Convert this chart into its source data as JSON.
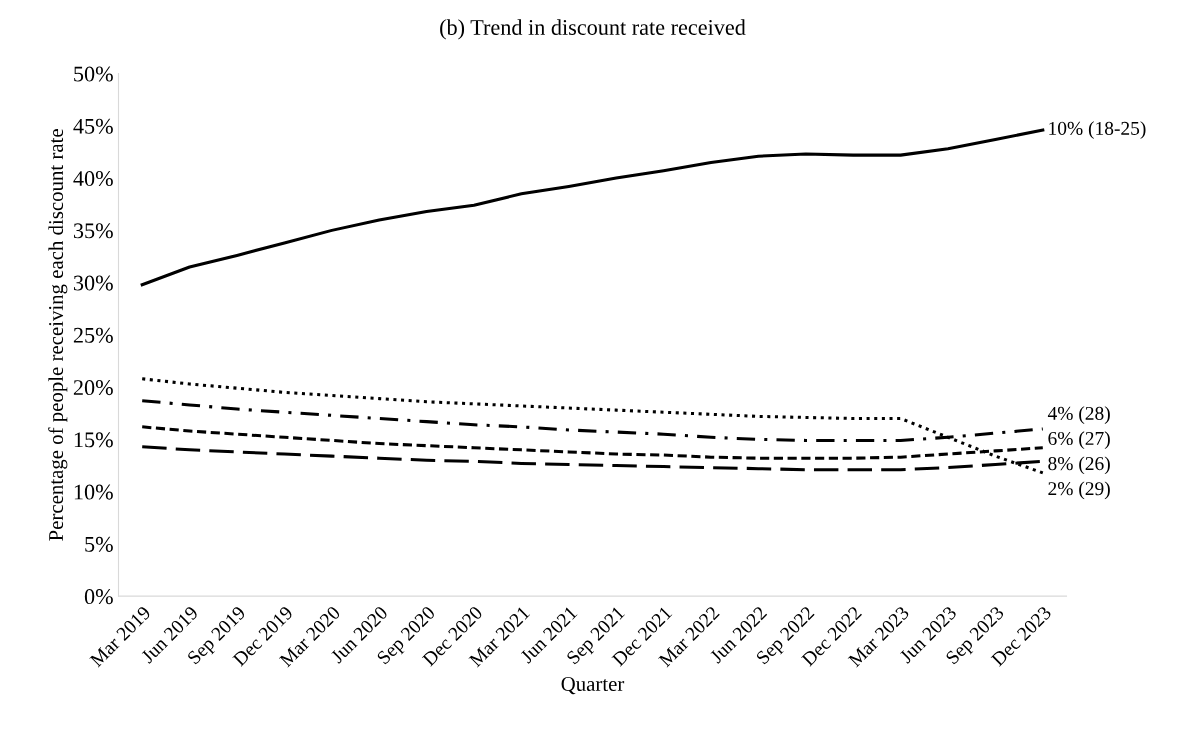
{
  "chart_data": {
    "type": "line",
    "title": "(b) Trend in discount rate received",
    "xlabel": "Quarter",
    "ylabel": "Percentage of people receiving each discount rate",
    "categories": [
      "Mar 2019",
      "Jun 2019",
      "Sep 2019",
      "Dec 2019",
      "Mar 2020",
      "Jun 2020",
      "Sep 2020",
      "Dec 2020",
      "Mar 2021",
      "Jun 2021",
      "Sep 2021",
      "Dec 2021",
      "Mar 2022",
      "Jun 2022",
      "Sep 2022",
      "Dec 2022",
      "Mar 2023",
      "Jun 2023",
      "Sep 2023",
      "Dec 2023"
    ],
    "series": [
      {
        "name": "10% (18-25)",
        "color": "#000000",
        "line_style": "solid",
        "values": [
          29.8,
          31.5,
          32.6,
          33.8,
          35.0,
          36.0,
          36.8,
          37.4,
          38.5,
          39.2,
          40.0,
          40.7,
          41.5,
          42.1,
          42.3,
          42.2,
          42.2,
          42.8,
          43.7,
          44.6
        ]
      },
      {
        "name": "4% (28)",
        "color": "#000000",
        "line_style": "dashdot",
        "values": [
          18.7,
          18.3,
          17.9,
          17.6,
          17.3,
          17.0,
          16.7,
          16.4,
          16.2,
          15.9,
          15.7,
          15.5,
          15.2,
          15.0,
          14.9,
          14.9,
          14.9,
          15.2,
          15.6,
          16.0
        ]
      },
      {
        "name": "6% (27)",
        "color": "#000000",
        "line_style": "dashed",
        "values": [
          16.2,
          15.8,
          15.5,
          15.2,
          14.9,
          14.6,
          14.4,
          14.2,
          14.0,
          13.8,
          13.6,
          13.5,
          13.3,
          13.2,
          13.2,
          13.2,
          13.3,
          13.6,
          13.9,
          14.2
        ]
      },
      {
        "name": "8% (26)",
        "color": "#000000",
        "line_style": "longdash",
        "values": [
          14.3,
          14.0,
          13.8,
          13.6,
          13.4,
          13.2,
          13.0,
          12.9,
          12.7,
          12.6,
          12.5,
          12.4,
          12.3,
          12.2,
          12.1,
          12.1,
          12.1,
          12.3,
          12.6,
          12.9
        ]
      },
      {
        "name": "2% (29)",
        "color": "#000000",
        "line_style": "dotted",
        "values": [
          20.8,
          20.3,
          19.9,
          19.5,
          19.2,
          18.9,
          18.6,
          18.4,
          18.2,
          18.0,
          17.8,
          17.6,
          17.4,
          17.2,
          17.1,
          17.0,
          17.0,
          15.2,
          13.4,
          11.8
        ]
      }
    ],
    "ylim": [
      0,
      50
    ],
    "yticks": [
      {
        "value": 0,
        "label": "0%"
      },
      {
        "value": 5,
        "label": "5%"
      },
      {
        "value": 10,
        "label": "10%"
      },
      {
        "value": 15,
        "label": "15%"
      },
      {
        "value": 20,
        "label": "20%"
      },
      {
        "value": 25,
        "label": "25%"
      },
      {
        "value": 30,
        "label": "30%"
      },
      {
        "value": 35,
        "label": "35%"
      },
      {
        "value": 40,
        "label": "40%"
      },
      {
        "value": 45,
        "label": "45%"
      },
      {
        "value": 50,
        "label": "50%"
      }
    ],
    "grid": false,
    "legend": false,
    "marker": "none"
  }
}
